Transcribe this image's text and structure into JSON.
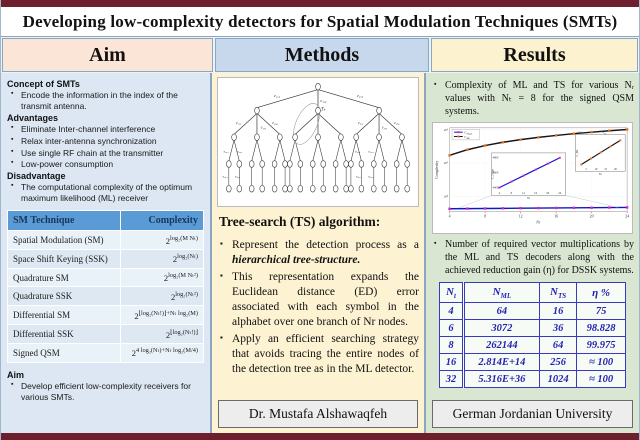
{
  "title": "Developing low-complexity detectors for Spatial Modulation Techniques (SMTs)",
  "headers": {
    "aim": "Aim",
    "methods": "Methods",
    "results": "Results"
  },
  "aim": {
    "sections": [
      {
        "heading": "Concept of SMTs",
        "bullets": [
          "Encode the information in the index of the transmit antenna."
        ]
      },
      {
        "heading": "Advantages",
        "bullets": [
          "Eliminate Inter-channel interference",
          "Relax inter-antenna synchronization",
          "Use single RF chain at the transmitter",
          "Low-power consumption"
        ]
      },
      {
        "heading": "Disadvantage",
        "bullets": [
          "The computational complexity of the optimum maximum likelihood (ML) receiver"
        ]
      }
    ],
    "table": {
      "headers": [
        "SM Technique",
        "Complexity"
      ],
      "rows": [
        {
          "technique": "Spatial Modulation (SM)",
          "base": "2",
          "exp": "log₂(M Nₜ)"
        },
        {
          "technique": "Space Shift Keying (SSK)",
          "base": "2",
          "exp": "log₂(Nₜ)"
        },
        {
          "technique": "Quadrature SM",
          "base": "2",
          "exp": "log₂(M Nₜ²)"
        },
        {
          "technique": "Quadrature SSK",
          "base": "2",
          "exp": "log₂(Nₜ²)"
        },
        {
          "technique": "Differential SM",
          "base": "2",
          "exp": "⌊log₂(Nₜ!)⌋+Nₜ log₂(M)"
        },
        {
          "technique": "Differential SSK",
          "base": "2",
          "exp": "⌊log₂(Nₜ!)⌋"
        },
        {
          "technique": "Signed QSM",
          "base": "2",
          "exp": "4 log₂(Nₜ)+Nₜ log₂(M/4)"
        }
      ]
    },
    "aim_heading": "Aim",
    "aim_bullets": [
      "Develop efficient low-complexity receivers for various SMTs."
    ]
  },
  "methods": {
    "heading": "Tree-search (TS) algorithm:",
    "bullets": [
      {
        "text": "Represent the detection process as a ",
        "emph": "hierarchical tree-structure."
      },
      {
        "text": "This representation expands the Euclidean distance (ED) error associated with each symbol in the alphabet over one branch of Nr nodes.",
        "emph": ""
      },
      {
        "text": "Apply an efficient searching strategy that avoids tracing the entire nodes of the detection tree as in the ML detector.",
        "emph": ""
      }
    ],
    "tree": {
      "root_edge_labels": [
        "e₁,₁",
        "e₁,₂",
        "e₁,₃"
      ],
      "level2_edge_labels_left": [
        "e₂,₂",
        "e₂,₃",
        "e₂,₄"
      ],
      "level2_edge_labels_right": [
        "e₂,₁",
        "e₂,₃",
        "e₂,₆"
      ],
      "level3_edge_labels": [
        "e₃,₃",
        "e₃,₄"
      ],
      "level4_edge_labels": [
        "e₄,₁",
        "e₄,₂"
      ],
      "highlight_label": "Tₖ"
    }
  },
  "results": {
    "bullet1": "Complexity of ML and TS for various Nᵣ values with Nₜ = 8 for the signed QSM systems.",
    "bullet2": "Number of required vector multiplications by the ML and TS decoders along with the achieved reduction gain (η) for DSSK systems.",
    "table": {
      "headers": [
        {
          "base": "N",
          "sub": "t"
        },
        {
          "base": "N",
          "sub": "ML"
        },
        {
          "base": "N",
          "sub": "TS"
        },
        {
          "base": "η %",
          "sub": ""
        }
      ],
      "rows": [
        [
          "4",
          "64",
          "16",
          "75"
        ],
        [
          "6",
          "3072",
          "36",
          "98.828"
        ],
        [
          "8",
          "262144",
          "64",
          "99.975"
        ],
        [
          "16",
          "2.814E+14",
          "256",
          "≈ 100"
        ],
        [
          "32",
          "5.316E+36",
          "1024",
          "≈ 100"
        ]
      ]
    }
  },
  "footers": {
    "author": "Dr. Mustafa Alshawaqfeh",
    "university": "German Jordanian University"
  },
  "chart_data": {
    "type": "line",
    "title": "",
    "xlabel": "Nr",
    "ylabel": "Complexity",
    "yscale": "log",
    "ylim": [
      4000,
      1000000
    ],
    "x": [
      4,
      6,
      8,
      10,
      12,
      14,
      16,
      18,
      20,
      22,
      24
    ],
    "series": [
      {
        "name": "C_TSopt",
        "line_color": "#1414c8",
        "marker_color": "#e020c0",
        "values": [
          4380,
          4420,
          4465,
          4510,
          4550,
          4590,
          4630,
          4670,
          4710,
          4755,
          4800
        ]
      },
      {
        "name": "C_ML",
        "line_color": "#161616",
        "marker_color": "#e8701a",
        "values": [
          170000,
          250000,
          333000,
          417000,
          500000,
          583000,
          667000,
          750000,
          833000,
          917000,
          1000000
        ]
      }
    ],
    "xticks": [
      4,
      8,
      12,
      16,
      20,
      24
    ],
    "ytick_labels": [
      "10⁴",
      "10⁵",
      "10⁶"
    ],
    "legend": [
      {
        "base": "C",
        "sub": "TSopt"
      },
      {
        "base": "C",
        "sub": "ML"
      }
    ],
    "legend_position": "top-left",
    "grid": true,
    "insets": [
      {
        "name": "ts-zoom",
        "ylabel": "C_TSopt",
        "yticks": [
          "4800",
          "4600",
          "4400"
        ],
        "xticks": [
          "4",
          "8",
          "12",
          "16",
          "20",
          "24"
        ],
        "xlabel": "Nr"
      },
      {
        "name": "ml-zoom",
        "ylabel": "C_ML",
        "scale": "×10⁵",
        "xticks": [
          "5",
          "10",
          "15",
          "20"
        ],
        "xlabel": "Nr"
      }
    ]
  }
}
